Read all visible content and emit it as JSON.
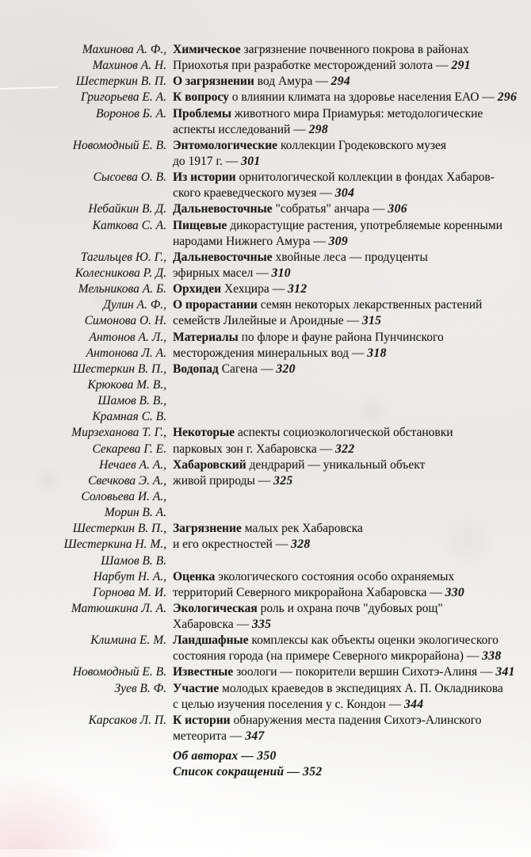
{
  "document": {
    "kind": "scanned-table-of-contents-page",
    "language": "ru",
    "colors": {
      "paper": "#eae8e5",
      "ink": "#1c1b19",
      "smudge_pink": "#eec3ca"
    },
    "rows": [
      {
        "author": "Махинова А. Ф.,",
        "bold": "Химическое",
        "text": " загрязнение почвенного покрова в районах",
        "page": null
      },
      {
        "author": "Махинов А. Н.",
        "bold": null,
        "text": "Приохотья при разработке месторождений золота — ",
        "page": "291"
      },
      {
        "author": "Шестеркин В. П.",
        "bold": "О загрязнении",
        "text": " вод Амура — ",
        "page": "294"
      },
      {
        "author": "Григорьева Е. А.",
        "bold": "К вопросу",
        "text": " о влиянии климата на здоровье населения ЕАО — ",
        "page": "296"
      },
      {
        "author": "Воронов Б. А.",
        "bold": "Проблемы",
        "text": " животного мира Приамурья: методологические",
        "page": null
      },
      {
        "author": "",
        "bold": null,
        "text": "аспекты исследований — ",
        "page": "298"
      },
      {
        "author": "Новомодный Е. В.",
        "bold": "Энтомологические",
        "text": " коллекции Гродековского музея",
        "page": null
      },
      {
        "author": "",
        "bold": null,
        "text": "до 1917 г. — ",
        "page": "301"
      },
      {
        "author": "Сысоева О. В.",
        "bold": "Из истории",
        "text": " орнитологической коллекции в фондах Хабаров-",
        "page": null
      },
      {
        "author": "",
        "bold": null,
        "text": "ского краеведческого музея — ",
        "page": "304"
      },
      {
        "author": "Небайкин В. Д.",
        "bold": "Дальневосточные",
        "text": " \"собратья\" анчара — ",
        "page": "306"
      },
      {
        "author": "Каткова С. А.",
        "bold": "Пищевые",
        "text": " дикорастущие растения, употребляемые коренными",
        "page": null
      },
      {
        "author": "",
        "bold": null,
        "text": "народами Нижнего Амура — ",
        "page": "309"
      },
      {
        "author": "Тагильцев Ю. Г.,",
        "bold": "Дальневосточные",
        "text": " хвойные леса — продуценты",
        "page": null
      },
      {
        "author": "Колесникова Р. Д.",
        "bold": null,
        "text": "эфирных масел — ",
        "page": "310"
      },
      {
        "author": "Мельникова А. Б.",
        "bold": "Орхидеи",
        "text": " Хехцира — ",
        "page": "312"
      },
      {
        "author": "Дулин А. Ф.,",
        "bold": "О прорастании",
        "text": " семян некоторых лекарственных растений",
        "page": null
      },
      {
        "author": "Симонова О. Н.",
        "bold": null,
        "text": "семейств Лилейные и Ароидные — ",
        "page": "315"
      },
      {
        "author": "Антонов А. Л.,",
        "bold": "Материалы",
        "text": " по флоре и фауне района Пунчинского",
        "page": null
      },
      {
        "author": "Антонова Л. А.",
        "bold": null,
        "text": "месторождения минеральных вод — ",
        "page": "318"
      },
      {
        "author": "Шестеркин В. П.,",
        "bold": "Водопад",
        "text": " Сагена — ",
        "page": "320"
      },
      {
        "author": "Крюкова М. В.,",
        "bold": null,
        "text": "",
        "page": null
      },
      {
        "author": "Шамов В. В.,",
        "bold": null,
        "text": "",
        "page": null
      },
      {
        "author": "Крамная С. В.",
        "bold": null,
        "text": "",
        "page": null
      },
      {
        "author": "Мирзеханова Т. Г.,",
        "bold": "Некоторые",
        "text": " аспекты социоэкологической обстановки",
        "page": null
      },
      {
        "author": "Секарева Г. Е.",
        "bold": null,
        "text": "парковых зон г. Хабаровска — ",
        "page": "322"
      },
      {
        "author": "Нечаев А. А.,",
        "bold": "Хабаровский",
        "text": " дендрарий — уникальный объект",
        "page": null
      },
      {
        "author": "Свечкова Э. А.,",
        "bold": null,
        "text": "живой природы — ",
        "page": "325"
      },
      {
        "author": "Соловьева И. А.,",
        "bold": null,
        "text": "",
        "page": null
      },
      {
        "author": "Морин В. А.",
        "bold": null,
        "text": "",
        "page": null
      },
      {
        "author": "Шестеркин В. П.,",
        "bold": "Загрязнение",
        "text": " малых рек Хабаровска",
        "page": null
      },
      {
        "author": "Шестеркина Н. М.,",
        "bold": null,
        "text": "и его окрестностей — ",
        "page": "328"
      },
      {
        "author": "Шамов В. В.",
        "bold": null,
        "text": "",
        "page": null
      },
      {
        "author": "Нарбут Н. А.,",
        "bold": "Оценка",
        "text": " экологического состояния особо охраняемых",
        "page": null
      },
      {
        "author": "Горнова М. И.",
        "bold": null,
        "text": "территорий Северного микрорайона Хабаровска — ",
        "page": "330"
      },
      {
        "author": "Матюшкина Л. А.",
        "bold": "Экологическая",
        "text": " роль и охрана почв \"дубовых рощ\"",
        "page": null
      },
      {
        "author": "",
        "bold": null,
        "text": "Хабаровска — ",
        "page": "335"
      },
      {
        "author": "Климина Е. М.",
        "bold": "Ландшафные",
        "text": " комплексы как объекты оценки экологического",
        "page": null
      },
      {
        "author": "",
        "bold": null,
        "text": "состояния города (на примере Северного микрорайона) — ",
        "page": "338"
      },
      {
        "author": "Новомодный Е. В.",
        "bold": "Известные",
        "text": " зоологи — покорители вершин Сихотэ-Алиня — ",
        "page": "341"
      },
      {
        "author": "Зуев В. Ф.",
        "bold": "Участие",
        "text": " молодых краеведов в экспедициях А. П. Окладникова",
        "page": null
      },
      {
        "author": "",
        "bold": null,
        "text": "с целью изучения поселения у с. Кондон — ",
        "page": "344"
      },
      {
        "author": "Карсаков Л. П.",
        "bold": "К истории",
        "text": " обнаружения места падения Сихотэ-Алинского",
        "page": null
      },
      {
        "author": "",
        "bold": null,
        "text": "метеорита — ",
        "page": "347"
      }
    ],
    "footer_rows": [
      {
        "label": "Об авторах — ",
        "page": "350"
      },
      {
        "label": "Список сокращений — ",
        "page": "352"
      }
    ]
  }
}
